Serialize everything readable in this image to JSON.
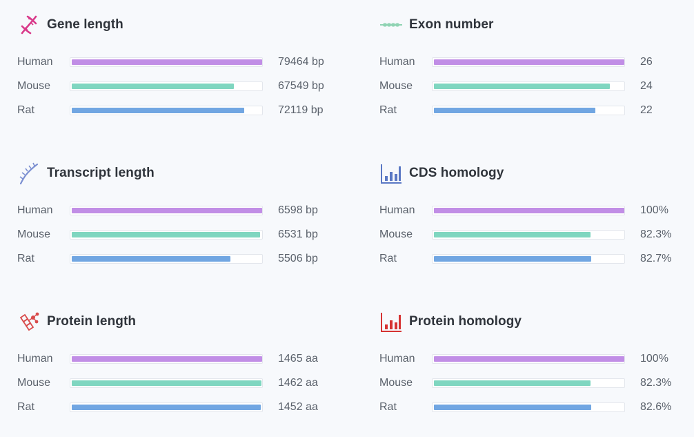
{
  "colors": {
    "Human": "#c18ee6",
    "Mouse": "#7fd6c0",
    "Rat": "#71a6e2"
  },
  "chart_data": [
    {
      "type": "bar",
      "title": "Gene length",
      "icon": "dna-helix-icon",
      "categories": [
        "Human",
        "Mouse",
        "Rat"
      ],
      "values": [
        79464,
        67549,
        72119
      ],
      "value_labels": [
        "79464 bp",
        "67549 bp",
        "72119 bp"
      ]
    },
    {
      "type": "bar",
      "title": "Exon number",
      "icon": "exon-chain-icon",
      "categories": [
        "Human",
        "Mouse",
        "Rat"
      ],
      "values": [
        26,
        24,
        22
      ],
      "value_labels": [
        "26",
        "24",
        "22"
      ]
    },
    {
      "type": "bar",
      "title": "Transcript length",
      "icon": "rna-strand-icon",
      "categories": [
        "Human",
        "Mouse",
        "Rat"
      ],
      "values": [
        6598,
        6531,
        5506
      ],
      "value_labels": [
        "6598 bp",
        "6531 bp",
        "5506 bp"
      ]
    },
    {
      "type": "bar",
      "title": "CDS homology",
      "icon": "bar-chart-blue-icon",
      "categories": [
        "Human",
        "Mouse",
        "Rat"
      ],
      "values": [
        100,
        82.3,
        82.7
      ],
      "value_labels": [
        "100%",
        "82.3%",
        "82.7%"
      ]
    },
    {
      "type": "bar",
      "title": "Protein length",
      "icon": "protein-chain-icon",
      "categories": [
        "Human",
        "Mouse",
        "Rat"
      ],
      "values": [
        1465,
        1462,
        1452
      ],
      "value_labels": [
        "1465 aa",
        "1462 aa",
        "1452 aa"
      ]
    },
    {
      "type": "bar",
      "title": "Protein homology",
      "icon": "bar-chart-red-icon",
      "categories": [
        "Human",
        "Mouse",
        "Rat"
      ],
      "values": [
        100,
        82.3,
        82.6
      ],
      "value_labels": [
        "100%",
        "82.3%",
        "82.6%"
      ]
    }
  ]
}
